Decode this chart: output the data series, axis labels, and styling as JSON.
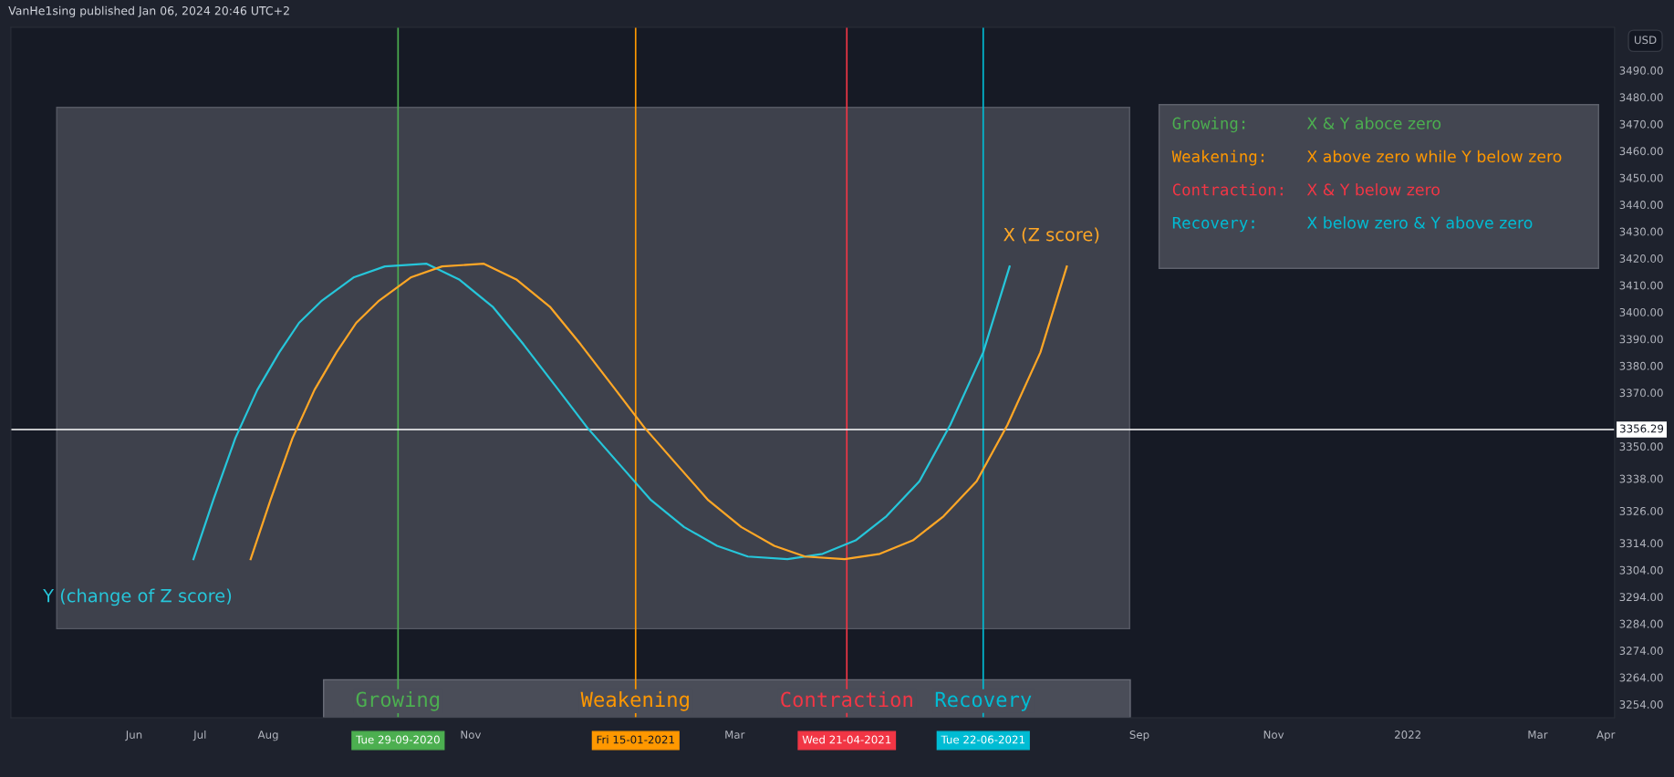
{
  "chart_data": {
    "type": "line",
    "ylabel": "USD",
    "annotations": [
      "VanHe1sing published Jan 06, 2024 20:46 UTC+2",
      "Growing:",
      "X & Y aboce zero",
      "Weakening:",
      "X above zero while Y below zero",
      "Contraction:",
      "X & Y below zero",
      "Recovery:",
      "X below zero & Y above zero",
      "Tue 29-09-2020",
      "Fri 15-01-2021",
      "Wed 21-04-2021",
      "Tue 22-06-2021"
    ],
    "series": [
      {
        "name": "Y (change of Z score)",
        "color": "#26c6da",
        "x": [
          "2020-06-28",
          "2020-07-07",
          "2020-07-17",
          "2020-07-27",
          "2020-08-06",
          "2020-08-15",
          "2020-08-25",
          "2020-09-09",
          "2020-09-23",
          "2020-10-12",
          "2020-10-27",
          "2020-11-11",
          "2020-11-25",
          "2020-12-10",
          "2020-12-24",
          "2021-01-08",
          "2021-01-22",
          "2021-02-06",
          "2021-02-21",
          "2021-03-07",
          "2021-03-25",
          "2021-04-10",
          "2021-04-25",
          "2021-05-09",
          "2021-05-24",
          "2021-06-07",
          "2021-06-22",
          "2021-07-04"
        ],
        "values": [
          3308,
          3330,
          3353,
          3371,
          3385,
          3396,
          3404,
          3413,
          3417,
          3418,
          3412,
          3402,
          3388,
          3372,
          3357,
          3343,
          3330,
          3320,
          3313,
          3309,
          3308,
          3310,
          3315,
          3324,
          3337,
          3358,
          3385,
          3417
        ]
      },
      {
        "name": "X (Z score)",
        "color": "#ffa726",
        "x": [
          "2020-07-24",
          "2020-08-02",
          "2020-08-12",
          "2020-08-22",
          "2020-09-01",
          "2020-09-10",
          "2020-09-20",
          "2020-10-05",
          "2020-10-19",
          "2020-11-07",
          "2020-11-22",
          "2020-12-07",
          "2020-12-21",
          "2021-01-05",
          "2021-01-19",
          "2021-02-03",
          "2021-02-17",
          "2021-03-04",
          "2021-03-19",
          "2021-04-02",
          "2021-04-20",
          "2021-05-06",
          "2021-05-21",
          "2021-06-04",
          "2021-06-19",
          "2021-07-03",
          "2021-07-18",
          "2021-07-30"
        ],
        "values": [
          3308,
          3330,
          3353,
          3371,
          3385,
          3396,
          3404,
          3413,
          3417,
          3418,
          3412,
          3402,
          3388,
          3372,
          3357,
          3343,
          3330,
          3320,
          3313,
          3309,
          3308,
          3310,
          3315,
          3324,
          3337,
          3358,
          3385,
          3417
        ]
      }
    ],
    "ref_lines": [
      {
        "axis": "x",
        "value": "2020-09-29",
        "label": "Growing",
        "color": "#4caf50"
      },
      {
        "axis": "x",
        "value": "2021-01-15",
        "label": "Weakening",
        "color": "#ff9800"
      },
      {
        "axis": "x",
        "value": "2021-04-21",
        "label": "Contraction",
        "color": "#f23645"
      },
      {
        "axis": "x",
        "value": "2021-06-22",
        "label": "Recovery",
        "color": "#00bcd4"
      },
      {
        "axis": "y",
        "value": 3356.29,
        "label": "3356.29",
        "color": "#ffffff"
      }
    ],
    "xlim": [
      "2020-04-06",
      "2022-04-05"
    ],
    "xticks": [
      {
        "value": "2020-06-01",
        "label": "Jun"
      },
      {
        "value": "2020-07-01",
        "label": "Jul"
      },
      {
        "value": "2020-08-01",
        "label": "Aug"
      },
      {
        "value": "2020-11-01",
        "label": "Nov"
      },
      {
        "value": "2021-03-01",
        "label": "Mar"
      },
      {
        "value": "2021-09-01",
        "label": "Sep"
      },
      {
        "value": "2021-11-01",
        "label": "Nov"
      },
      {
        "value": "2022-01-01",
        "label": "2022"
      },
      {
        "value": "2022-03-01",
        "label": "Mar"
      },
      {
        "value": "2022-04-01",
        "label": "Apr"
      }
    ],
    "ylim": [
      3249,
      3506
    ],
    "yticks": [
      {
        "value": 3490,
        "label": "3490.00"
      },
      {
        "value": 3480,
        "label": "3480.00"
      },
      {
        "value": 3470,
        "label": "3470.00"
      },
      {
        "value": 3460,
        "label": "3460.00"
      },
      {
        "value": 3450,
        "label": "3450.00"
      },
      {
        "value": 3440,
        "label": "3440.00"
      },
      {
        "value": 3430,
        "label": "3430.00"
      },
      {
        "value": 3420,
        "label": "3420.00"
      },
      {
        "value": 3410,
        "label": "3410.00"
      },
      {
        "value": 3400,
        "label": "3400.00"
      },
      {
        "value": 3390,
        "label": "3390.00"
      },
      {
        "value": 3380,
        "label": "3380.00"
      },
      {
        "value": 3370,
        "label": "3370.00"
      },
      {
        "value": 3350,
        "label": "3350.00"
      },
      {
        "value": 3338,
        "label": "3338.00"
      },
      {
        "value": 3326,
        "label": "3326.00"
      },
      {
        "value": 3314,
        "label": "3314.00"
      },
      {
        "value": 3304,
        "label": "3304.00"
      },
      {
        "value": 3294,
        "label": "3294.00"
      },
      {
        "value": 3284,
        "label": "3284.00"
      },
      {
        "value": 3274,
        "label": "3274.00"
      },
      {
        "value": 3264,
        "label": "3264.00"
      },
      {
        "value": 3254,
        "label": "3254.00"
      }
    ],
    "grid": false
  }
}
